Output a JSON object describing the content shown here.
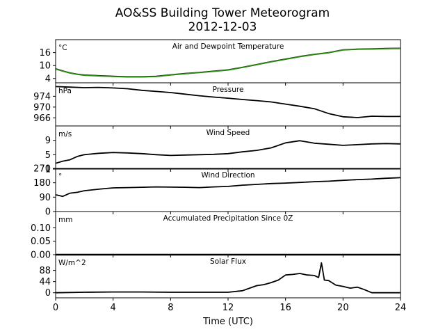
{
  "figure": {
    "title_line1": "AO&SS Building Tower Meteorogram",
    "title_line2": "2012-12-03",
    "xlabel": "Time (UTC)",
    "x_ticks": [
      "0",
      "4",
      "8",
      "12",
      "16",
      "20",
      "24"
    ]
  },
  "chart_data": [
    {
      "type": "line",
      "title": "Air and Dewpoint Temperature",
      "unit": "°C",
      "xlim": [
        0,
        24
      ],
      "ylim": [
        2,
        22
      ],
      "y_ticks": [
        4,
        10,
        16
      ],
      "series": [
        {
          "color": "#000000",
          "x": [
            0,
            0.5,
            1,
            1.5,
            2,
            3,
            4,
            5,
            6,
            7,
            8,
            9,
            10,
            11,
            12,
            13,
            14,
            15,
            16,
            17,
            18,
            19,
            20,
            21,
            22,
            23,
            24
          ],
          "y": [
            8.5,
            7.5,
            6.6,
            6.0,
            5.6,
            5.3,
            5.0,
            4.8,
            4.8,
            5.0,
            5.7,
            6.3,
            6.8,
            7.4,
            8.0,
            9.2,
            10.5,
            11.8,
            13.0,
            14.2,
            15.2,
            16.0,
            17.3,
            17.6,
            17.7,
            17.9,
            18.0
          ]
        },
        {
          "color": "#2d8a12",
          "x": [
            0,
            0.5,
            1,
            1.5,
            2,
            3,
            4,
            5,
            6,
            7,
            8,
            9,
            10,
            11,
            12,
            13,
            14,
            15,
            16,
            17,
            18,
            19,
            20,
            21,
            22,
            23,
            24
          ],
          "y": [
            8.4,
            7.4,
            6.5,
            5.9,
            5.5,
            5.2,
            4.9,
            4.7,
            4.7,
            4.9,
            5.6,
            6.2,
            6.7,
            7.3,
            7.9,
            9.1,
            10.4,
            11.7,
            12.9,
            14.1,
            15.1,
            15.9,
            17.2,
            17.5,
            17.6,
            17.8,
            17.9
          ]
        }
      ]
    },
    {
      "type": "line",
      "title": "Pressure",
      "unit": "hPa",
      "xlim": [
        0,
        24
      ],
      "ylim": [
        963,
        979
      ],
      "y_ticks": [
        966,
        970,
        974
      ],
      "series": [
        {
          "color": "#000000",
          "x": [
            0,
            1,
            2,
            3,
            4,
            5,
            6,
            7,
            8,
            9,
            10,
            11,
            12,
            13,
            14,
            15,
            16,
            17,
            18,
            19,
            20,
            21,
            22,
            23,
            24
          ],
          "y": [
            977.6,
            977.4,
            977.2,
            977.3,
            977.1,
            976.8,
            976.2,
            975.8,
            975.4,
            974.8,
            974.2,
            973.7,
            973.3,
            972.8,
            972.4,
            971.9,
            971.1,
            970.3,
            969.4,
            967.6,
            966.4,
            966.1,
            966.6,
            966.5,
            966.5
          ]
        }
      ]
    },
    {
      "type": "line",
      "title": "Wind Speed",
      "unit": "m/s",
      "xlim": [
        0,
        24
      ],
      "ylim": [
        1,
        13
      ],
      "y_ticks": [
        1,
        5,
        9
      ],
      "series": [
        {
          "color": "#000000",
          "x": [
            0,
            0.5,
            1,
            1.5,
            2,
            3,
            4,
            5,
            6,
            7,
            8,
            9,
            10,
            11,
            12,
            13,
            14,
            15,
            16,
            17,
            18,
            19,
            20,
            21,
            22,
            23,
            24
          ],
          "y": [
            2.6,
            3.2,
            3.6,
            4.5,
            5.0,
            5.4,
            5.6,
            5.5,
            5.3,
            5.0,
            4.8,
            4.9,
            5.0,
            5.1,
            5.3,
            5.8,
            6.2,
            6.9,
            8.3,
            8.9,
            8.2,
            7.9,
            7.6,
            7.8,
            8.0,
            8.1,
            8.0
          ]
        }
      ]
    },
    {
      "type": "line",
      "title": "Wind Direction",
      "unit": "°",
      "xlim": [
        0,
        24
      ],
      "ylim": [
        0,
        270
      ],
      "y_ticks": [
        0,
        90,
        180,
        270
      ],
      "series": [
        {
          "color": "#000000",
          "x": [
            0,
            0.5,
            1,
            1.5,
            2,
            3,
            4,
            5,
            6,
            7,
            8,
            9,
            10,
            11,
            12,
            13,
            14,
            15,
            16,
            17,
            18,
            19,
            20,
            21,
            22,
            23,
            24
          ],
          "y": [
            105,
            95,
            115,
            120,
            130,
            140,
            148,
            150,
            152,
            154,
            153,
            152,
            150,
            154,
            157,
            165,
            170,
            175,
            178,
            182,
            187,
            190,
            195,
            200,
            203,
            208,
            212
          ]
        }
      ]
    },
    {
      "type": "line",
      "title": "Accumulated Precipitation Since 0Z",
      "unit": "mm",
      "xlim": [
        0,
        24
      ],
      "ylim": [
        0,
        0.16
      ],
      "y_ticks": [
        0.0,
        0.05,
        0.1
      ],
      "y_tick_labels": [
        "0.00",
        "0.05",
        "0.10"
      ],
      "series": [
        {
          "color": "#000000",
          "x": [
            0,
            24
          ],
          "y": [
            0,
            0
          ]
        }
      ]
    },
    {
      "type": "line",
      "title": "Solar Flux",
      "unit": "W/m^2",
      "xlim": [
        0,
        24
      ],
      "ylim": [
        -20,
        150
      ],
      "y_ticks": [
        0,
        44,
        88
      ],
      "series": [
        {
          "color": "#000000",
          "x": [
            0,
            2,
            4,
            6,
            8,
            10,
            12,
            13,
            13.5,
            14,
            14.5,
            15,
            15.5,
            16,
            16.5,
            17,
            17.5,
            18,
            18.3,
            18.5,
            18.7,
            19,
            19.5,
            20,
            20.5,
            21,
            21.5,
            22,
            23,
            24
          ],
          "y": [
            0,
            2,
            3,
            3,
            2,
            2,
            2,
            8,
            18,
            28,
            32,
            40,
            50,
            70,
            72,
            76,
            70,
            68,
            60,
            118,
            50,
            48,
            30,
            25,
            18,
            22,
            12,
            0,
            0,
            0
          ]
        }
      ]
    }
  ]
}
